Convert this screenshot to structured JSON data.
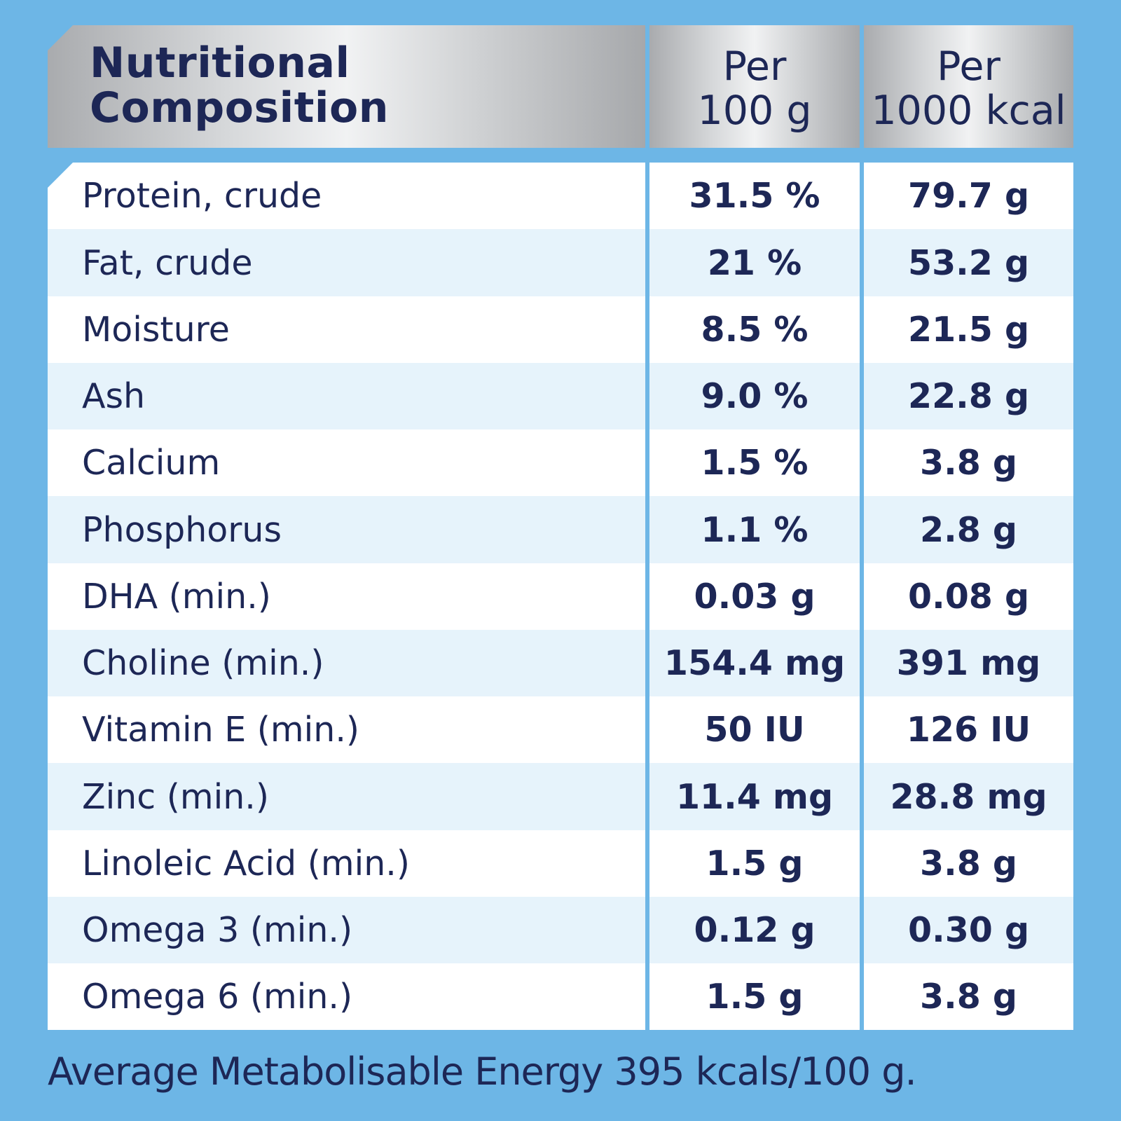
{
  "header": {
    "title_line1": "Nutritional",
    "title_line2": "Composition",
    "col1_line1": "Per",
    "col1_line2": "100 g",
    "col2_line1": "Per",
    "col2_line2": "1000 kcal"
  },
  "rows": [
    {
      "name": "Protein, crude",
      "per_100g": "31.5 %",
      "per_1000kcal": "79.7 g"
    },
    {
      "name": "Fat, crude",
      "per_100g": "21 %",
      "per_1000kcal": "53.2 g"
    },
    {
      "name": "Moisture",
      "per_100g": "8.5 %",
      "per_1000kcal": "21.5 g"
    },
    {
      "name": "Ash",
      "per_100g": "9.0 %",
      "per_1000kcal": "22.8 g"
    },
    {
      "name": "Calcium",
      "per_100g": "1.5 %",
      "per_1000kcal": "3.8 g"
    },
    {
      "name": "Phosphorus",
      "per_100g": "1.1 %",
      "per_1000kcal": "2.8 g"
    },
    {
      "name": "DHA (min.)",
      "per_100g": "0.03 g",
      "per_1000kcal": "0.08 g"
    },
    {
      "name": "Choline (min.)",
      "per_100g": "154.4 mg",
      "per_1000kcal": "391 mg"
    },
    {
      "name": "Vitamin E (min.)",
      "per_100g": "50 IU",
      "per_1000kcal": "126 IU"
    },
    {
      "name": "Zinc (min.)",
      "per_100g": "11.4 mg",
      "per_1000kcal": "28.8 mg"
    },
    {
      "name": "Linoleic Acid (min.)",
      "per_100g": "1.5 g",
      "per_1000kcal": "3.8 g"
    },
    {
      "name": "Omega 3 (min.)",
      "per_100g": "0.12 g",
      "per_1000kcal": "0.30 g"
    },
    {
      "name": "Omega 6 (min.)",
      "per_100g": "1.5 g",
      "per_1000kcal": "3.8 g"
    }
  ],
  "footer": "Average Metabolisable Energy 395 kcals/100 g.",
  "colors": {
    "background": "#6db6e6",
    "text": "#1d2756",
    "row_alt": "#e6f3fb",
    "row": "#ffffff"
  }
}
